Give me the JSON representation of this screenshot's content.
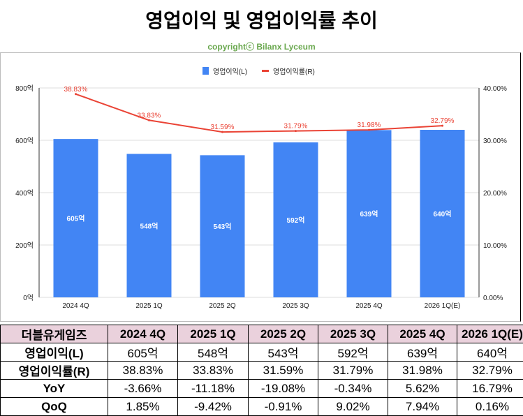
{
  "title": "영업이익 및 영업이익률 추이",
  "copyright": "copyrightⓒ Bilanx Lyceum",
  "chart_data": {
    "type": "bar+line",
    "categories": [
      "2024 4Q",
      "2025 1Q",
      "2025 2Q",
      "2025 3Q",
      "2025 4Q",
      "2026 1Q(E)"
    ],
    "series": [
      {
        "name": "영업이익(L)",
        "type": "bar",
        "axis": "left",
        "values": [
          605,
          548,
          543,
          592,
          639,
          640
        ],
        "labels": [
          "605억",
          "548억",
          "543억",
          "592억",
          "639억",
          "640억"
        ],
        "color": "#4285f4"
      },
      {
        "name": "영업이익률(R)",
        "type": "line",
        "axis": "right",
        "values": [
          38.83,
          33.83,
          31.59,
          31.79,
          31.98,
          32.79
        ],
        "labels": [
          "38.83%",
          "33.83%",
          "31.59%",
          "31.79%",
          "31.98%",
          "32.79%"
        ],
        "color": "#ea4335"
      }
    ],
    "left_axis": {
      "range": [
        0,
        800
      ],
      "ticks": [
        "0억",
        "200억",
        "400억",
        "600억",
        "800억"
      ]
    },
    "right_axis": {
      "range": [
        0,
        40
      ],
      "ticks": [
        "0.00%",
        "10.00%",
        "20.00%",
        "30.00%",
        "40.00%"
      ]
    },
    "legend": "top",
    "grid": true
  },
  "table": {
    "header": [
      "더블유게임즈",
      "2024 4Q",
      "2025 1Q",
      "2025 2Q",
      "2025 3Q",
      "2025 4Q",
      "2026 1Q(E)"
    ],
    "rows": [
      [
        "영업이익(L)",
        "605억",
        "548억",
        "543억",
        "592억",
        "639억",
        "640억"
      ],
      [
        "영업이익률(R)",
        "38.83%",
        "33.83%",
        "31.59%",
        "31.79%",
        "31.98%",
        "32.79%"
      ],
      [
        "YoY",
        "-3.66%",
        "-11.18%",
        "-19.08%",
        "-0.34%",
        "5.62%",
        "16.79%"
      ],
      [
        "QoQ",
        "1.85%",
        "-9.42%",
        "-0.91%",
        "9.02%",
        "7.94%",
        "0.16%"
      ]
    ]
  }
}
